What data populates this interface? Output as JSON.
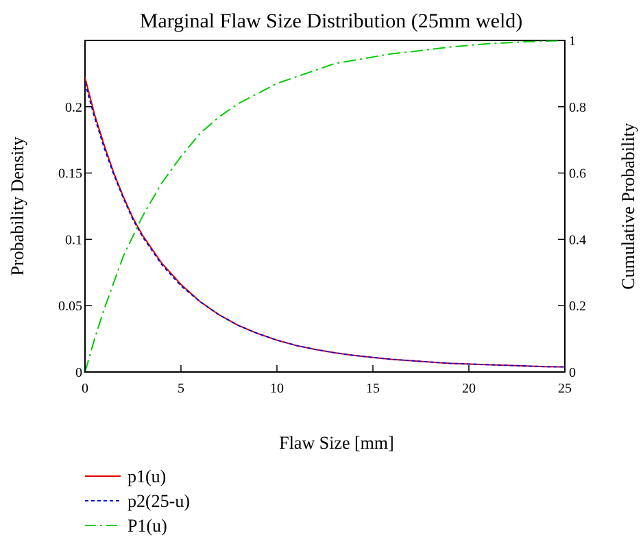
{
  "chart_data": {
    "type": "line",
    "title": "Marginal Flaw Size Distribution (25mm weld)",
    "xlabel": "Flaw Size [mm]",
    "ylabel": "Probability Density",
    "y2label": "Cumulative Probability",
    "xlim": [
      0,
      25
    ],
    "ylim": [
      0,
      0.25
    ],
    "y2lim": [
      0,
      1
    ],
    "x_ticks": [
      0,
      5,
      10,
      15,
      20,
      25
    ],
    "x_tick_labels": [
      "0",
      "5",
      "10",
      "15",
      "20",
      "25"
    ],
    "y_ticks": [
      0,
      0.05,
      0.1,
      0.15,
      0.2
    ],
    "y_tick_labels": [
      "0",
      "0.05",
      "0.1",
      "0.15",
      "0.2"
    ],
    "y2_ticks": [
      0,
      0.2,
      0.4,
      0.6,
      0.8,
      1
    ],
    "y2_tick_labels": [
      "0",
      "0.2",
      "0.4",
      "0.6",
      "0.8",
      "1"
    ],
    "grid": false,
    "legend_position": "bottom-left",
    "x": [
      0,
      0.5,
      1,
      1.5,
      2,
      2.5,
      3,
      4,
      5,
      6,
      7,
      8,
      9,
      10,
      11,
      12,
      13,
      14,
      15,
      16,
      17,
      18,
      19,
      20,
      21,
      22,
      23,
      24,
      25
    ],
    "series": [
      {
        "name": "p1(u)",
        "axis": "left",
        "color": "#e00000",
        "dash": "solid",
        "values": [
          0.222,
          0.194,
          0.171,
          0.15,
          0.132,
          0.116,
          0.103,
          0.082,
          0.066,
          0.053,
          0.043,
          0.035,
          0.029,
          0.024,
          0.02,
          0.017,
          0.0145,
          0.0125,
          0.011,
          0.0095,
          0.0085,
          0.0075,
          0.0065,
          0.006,
          0.0055,
          0.005,
          0.0045,
          0.004,
          0.0038
        ]
      },
      {
        "name": "p2(25-u)",
        "axis": "left",
        "color": "#0000e0",
        "dash": "dotted",
        "values": [
          0.218,
          0.192,
          0.169,
          0.149,
          0.131,
          0.115,
          0.102,
          0.081,
          0.065,
          0.053,
          0.043,
          0.035,
          0.029,
          0.024,
          0.02,
          0.017,
          0.0145,
          0.0125,
          0.011,
          0.0095,
          0.0085,
          0.0075,
          0.0065,
          0.006,
          0.0055,
          0.005,
          0.0045,
          0.004,
          0.0038
        ]
      },
      {
        "name": "P1(u)",
        "axis": "right",
        "color": "#00cc00",
        "dash": "dashdot",
        "values": [
          0.0,
          0.1,
          0.19,
          0.27,
          0.35,
          0.41,
          0.47,
          0.57,
          0.65,
          0.72,
          0.77,
          0.81,
          0.84,
          0.87,
          0.89,
          0.91,
          0.93,
          0.94,
          0.95,
          0.96,
          0.966,
          0.973,
          0.98,
          0.985,
          0.99,
          0.993,
          0.996,
          0.998,
          1.0
        ]
      }
    ]
  }
}
